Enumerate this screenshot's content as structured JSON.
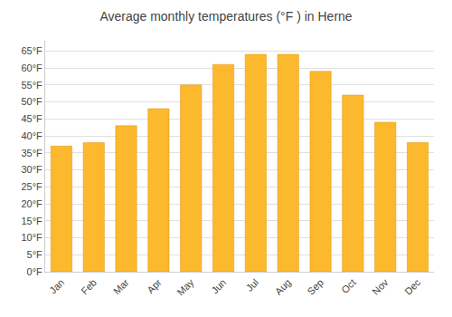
{
  "chart_data": {
    "type": "bar",
    "title": "Average monthly temperatures (°F ) in Herne",
    "categories": [
      "Jan",
      "Feb",
      "Mar",
      "Apr",
      "May",
      "Jun",
      "Jul",
      "Aug",
      "Sep",
      "Oct",
      "Nov",
      "Dec"
    ],
    "values": [
      37,
      38,
      43,
      48,
      55,
      61,
      64,
      64,
      59,
      52,
      44,
      38
    ],
    "color": "#FDB92E",
    "ylim": [
      0,
      68
    ],
    "yticks": [
      {
        "value": 0,
        "label": "0°F"
      },
      {
        "value": 5,
        "label": "5°F"
      },
      {
        "value": 10,
        "label": "10°F"
      },
      {
        "value": 15,
        "label": "15°F"
      },
      {
        "value": 20,
        "label": "20°F"
      },
      {
        "value": 25,
        "label": "25°F"
      },
      {
        "value": 30,
        "label": "30°F"
      },
      {
        "value": 35,
        "label": "35°F"
      },
      {
        "value": 40,
        "label": "40°F"
      },
      {
        "value": 45,
        "label": "45°F"
      },
      {
        "value": 50,
        "label": "50°F"
      },
      {
        "value": 55,
        "label": "55°F"
      },
      {
        "value": 60,
        "label": "60°F"
      },
      {
        "value": 65,
        "label": "65°F"
      }
    ],
    "grid": true
  }
}
